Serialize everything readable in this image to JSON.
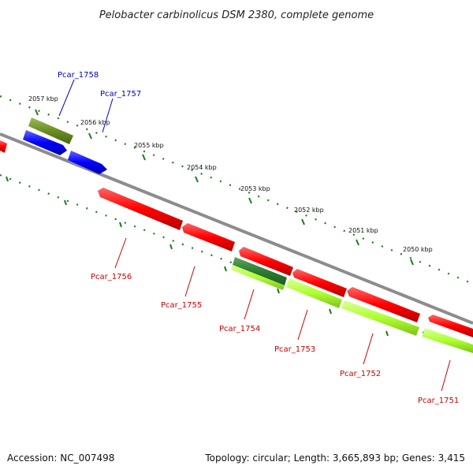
{
  "title": "Pelobacter carbinolicus DSM 2380, complete genome",
  "footer": {
    "accession": "Accession: NC_007498",
    "summary": "Topology: circular; Length: 3,665,893 bp; Genes: 3,415"
  },
  "colors": {
    "backbone": "#8c8c8c",
    "tick": "#1e7a1e",
    "reverse_gene": "#ff0000",
    "forward_gene": "#0000ff",
    "lime_gene": "#adff2f",
    "olive_gene": "#6b8e23",
    "dark_green_gene": "#2e7d32",
    "forward_label": "#0000cc",
    "reverse_label": "#cc0000"
  },
  "scale_labels": [
    "2057 kbp",
    "2056 kbp",
    "2055 kbp",
    "2054 kbp",
    "2053 kbp",
    "2052 kbp",
    "2051 kbp",
    "2050 kbp"
  ],
  "gene_labels": [
    "Pcar_1758",
    "Pcar_1757",
    "Pcar_1756",
    "Pcar_1755",
    "Pcar_1754",
    "Pcar_1753",
    "Pcar_1752",
    "Pcar_1751"
  ]
}
